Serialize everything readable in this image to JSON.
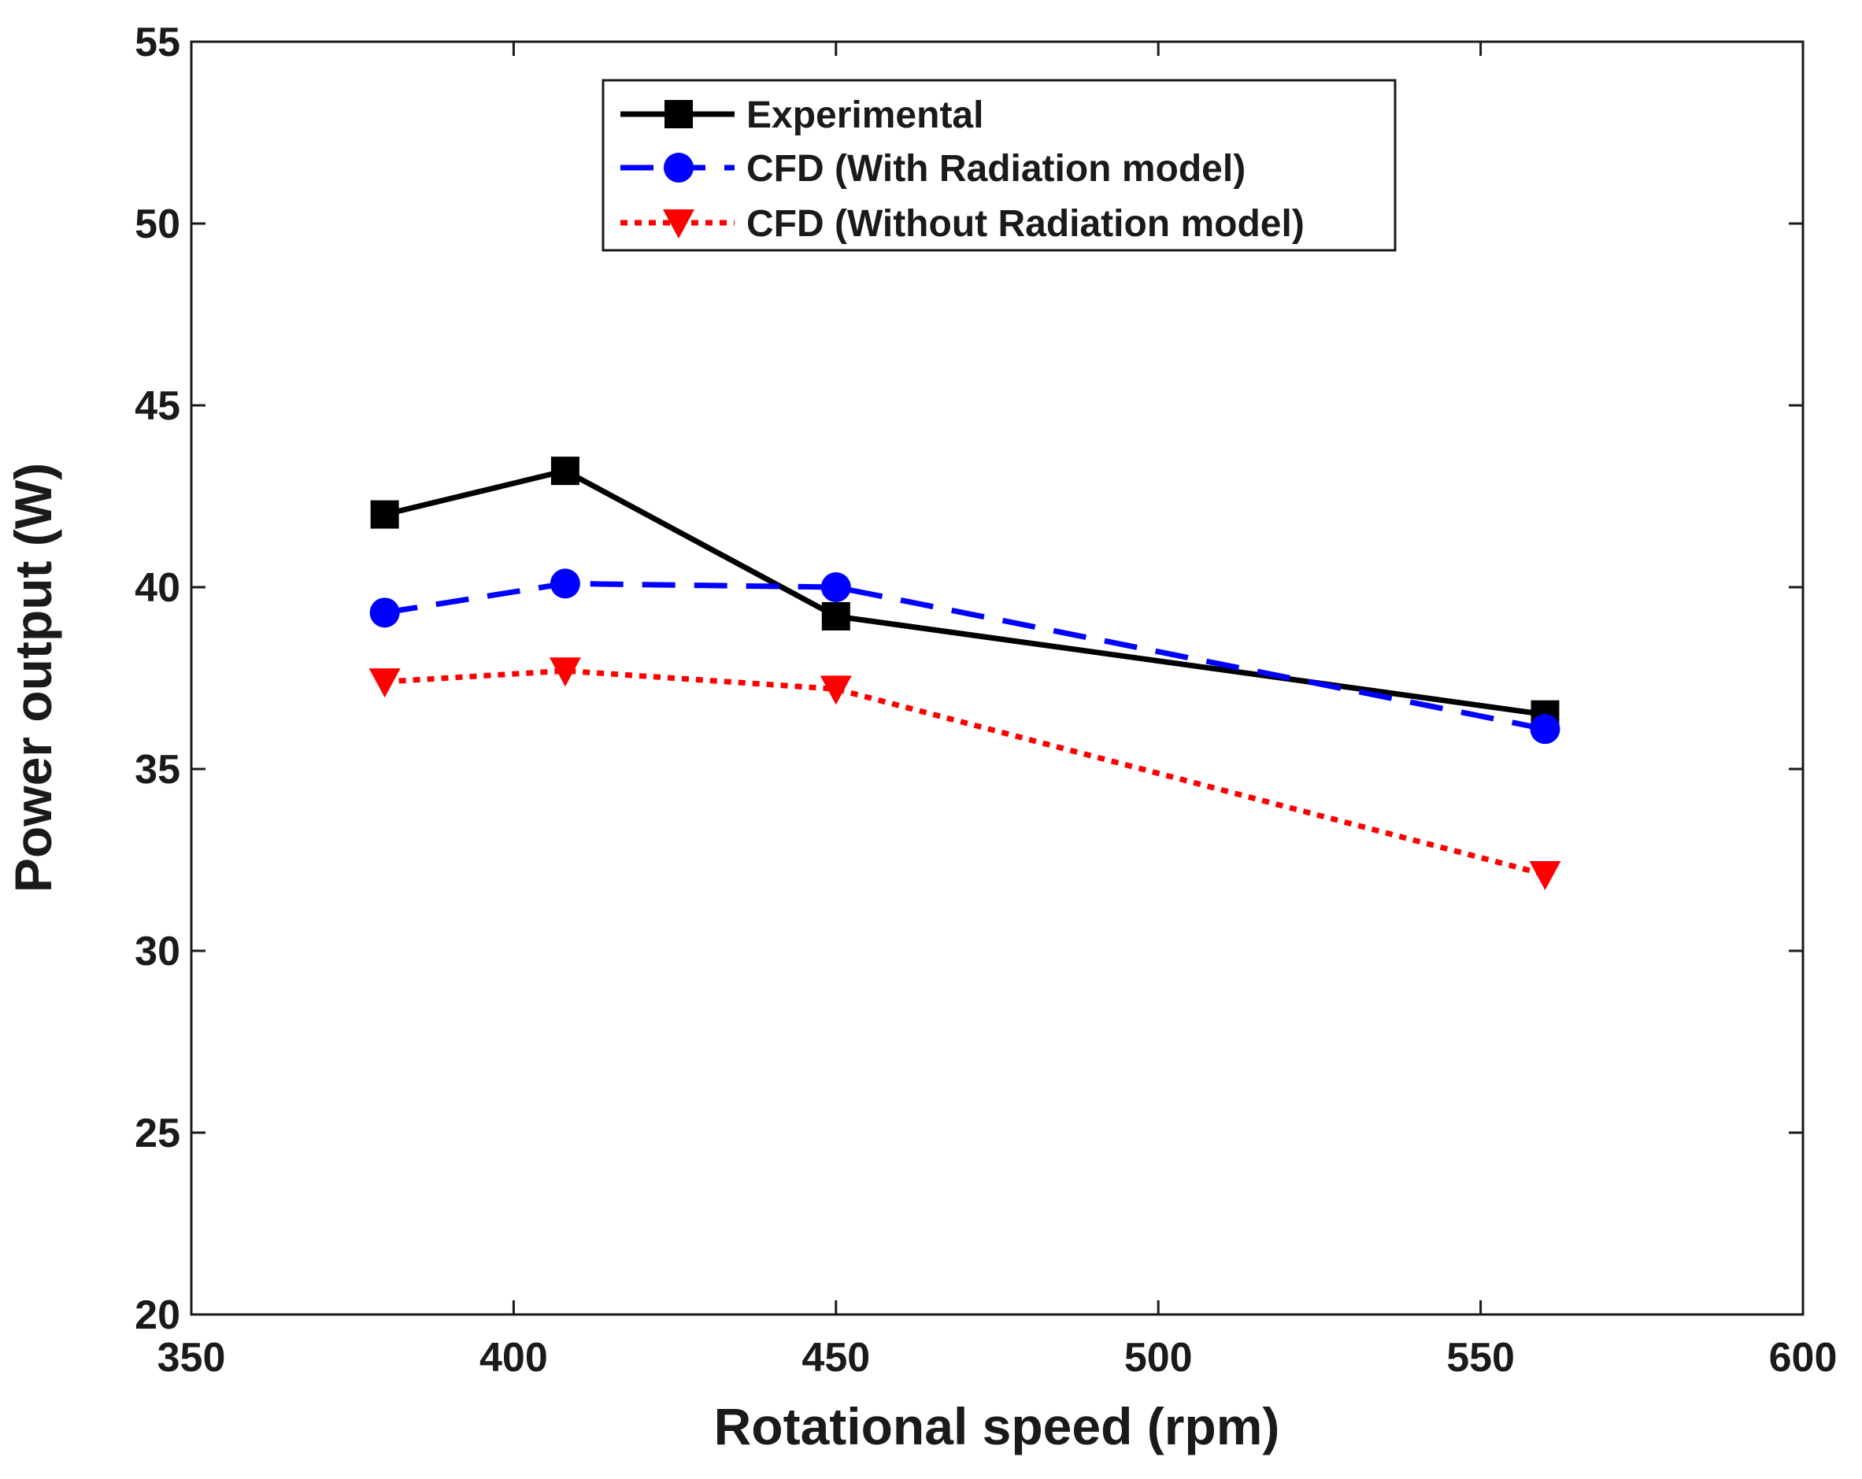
{
  "chart_data": {
    "type": "line",
    "title": "",
    "xlabel": "Rotational speed (rpm)",
    "ylabel": "Power output (W)",
    "xlim": [
      350,
      600
    ],
    "ylim": [
      20,
      55
    ],
    "xticks": [
      350,
      400,
      450,
      500,
      550,
      600
    ],
    "yticks": [
      20,
      25,
      30,
      35,
      40,
      45,
      50,
      55
    ],
    "grid": false,
    "legend_position": "top-center",
    "series": [
      {
        "name": "Experimental",
        "color": "#000000",
        "line_style": "solid",
        "marker": "square",
        "x": [
          380,
          408,
          450,
          560
        ],
        "y": [
          42.0,
          43.2,
          39.2,
          36.5
        ]
      },
      {
        "name": "CFD (With Radiation model)",
        "color": "#0000ff",
        "line_style": "dashed",
        "marker": "circle",
        "x": [
          380,
          408,
          450,
          560
        ],
        "y": [
          39.3,
          40.1,
          40.0,
          36.1
        ]
      },
      {
        "name": "CFD (Without Radiation model)",
        "color": "#ff0000",
        "line_style": "dotted",
        "marker": "triangle-down",
        "x": [
          380,
          408,
          450,
          560
        ],
        "y": [
          37.4,
          37.7,
          37.2,
          32.1
        ]
      }
    ]
  }
}
